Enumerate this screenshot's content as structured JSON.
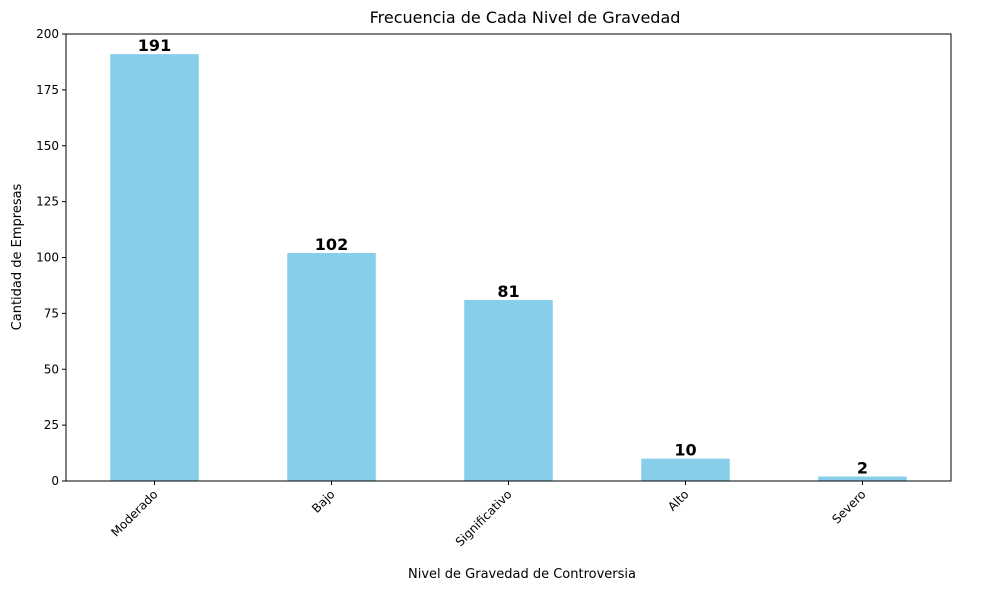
{
  "chart_data": {
    "type": "bar",
    "title": "Frecuencia de Cada Nivel de Gravedad",
    "xlabel": "Nivel de Gravedad de Controversia",
    "ylabel": "Cantidad de Empresas",
    "categories": [
      "Moderado",
      "Bajo",
      "Significativo",
      "Alto",
      "Severo"
    ],
    "values": [
      191,
      102,
      81,
      10,
      2
    ],
    "data_labels": [
      "191",
      "102",
      "81",
      "10",
      "2"
    ],
    "ylim": [
      0,
      200
    ],
    "yticks": [
      0,
      25,
      50,
      75,
      100,
      125,
      150,
      175,
      200
    ],
    "ytick_labels": [
      "0",
      "25",
      "50",
      "75",
      "100",
      "125",
      "150",
      "175",
      "200"
    ],
    "bar_color": "#87ceeb",
    "grid": false,
    "legend": "none"
  }
}
